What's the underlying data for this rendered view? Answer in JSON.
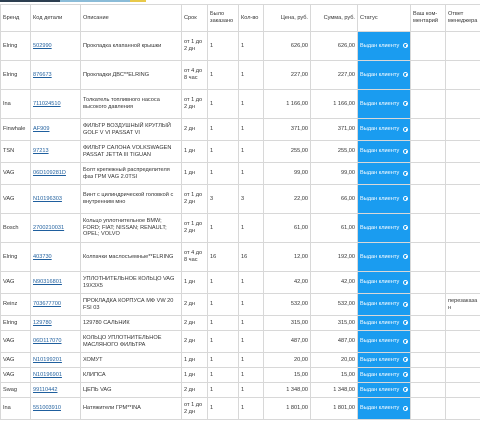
{
  "colors": {
    "status_bg": "#1a9cf0",
    "delete_icon": "#d9534f",
    "link": "#1f5f9e",
    "top_bar": [
      "#2c3e50",
      "#8bbcd8",
      "#e8c94a"
    ]
  },
  "columns": {
    "brand": "Бренд",
    "code": "Код детали",
    "description": "Описание",
    "term": "Срок",
    "ordered": "Было заказано",
    "qty": "Кол-во",
    "price": "Цена, руб.",
    "sum": "Сумма, руб.",
    "status": "Статус",
    "comment": "Ваш ком-ментарий",
    "manager": "Ответ менеджера"
  },
  "icons": {
    "status": "clock-icon",
    "delete": "delete-icon"
  },
  "rows": [
    {
      "brand": "Elring",
      "code": "502990",
      "description": "Прокладка клапанной крышки",
      "term": "от 1 до 2 дн",
      "ordered": "1",
      "qty": "1",
      "price": "626,00",
      "sum": "626,00",
      "status": "Выдан клиенту",
      "comment": "",
      "manager": ""
    },
    {
      "brand": "Elring",
      "code": "876673",
      "description": "Прокладки ДВС**ELRING",
      "term": "от 4 до 8 час",
      "ordered": "1",
      "qty": "1",
      "price": "227,00",
      "sum": "227,00",
      "status": "Выдан клиенту",
      "comment": "",
      "manager": ""
    },
    {
      "brand": "Ina",
      "code": "711024510",
      "description": "Толкатель топливного насоса высокого давления",
      "term": "от 1 до 2 дн",
      "ordered": "1",
      "qty": "1",
      "price": "1 166,00",
      "sum": "1 166,00",
      "status": "Выдан клиенту",
      "comment": "",
      "manager": ""
    },
    {
      "brand": "Finwhale",
      "code": "AF909",
      "description": "ФИЛЬТР ВОЗДУШНЫЙ КРУГЛЫЙ GOLF V VI PASSAT VI",
      "term": "2 дн",
      "ordered": "1",
      "qty": "1",
      "price": "371,00",
      "sum": "371,00",
      "status": "Выдан клиенту",
      "comment": "",
      "manager": ""
    },
    {
      "brand": "TSN",
      "code": "97213",
      "description": "ФИЛЬТР САЛОНА VOLKSWAGEN PASSAT JETTA III TIGUAN",
      "term": "1 дн",
      "ordered": "1",
      "qty": "1",
      "price": "255,00",
      "sum": "255,00",
      "status": "Выдан клиенту",
      "comment": "",
      "manager": ""
    },
    {
      "brand": "VAG",
      "code": "06D109281D",
      "description": "Болт крепежный распределителя фаз ГРМ VAG 2.0TSI",
      "term": "1 дн",
      "ordered": "1",
      "qty": "1",
      "price": "99,00",
      "sum": "99,00",
      "status": "Выдан клиенту",
      "comment": "",
      "manager": ""
    },
    {
      "brand": "VAG",
      "code": "N10196303",
      "description": "Винт с цилиндрической головкой с внутренним мно",
      "term": "от 1 до 2 дн",
      "ordered": "3",
      "qty": "3",
      "price": "22,00",
      "sum": "66,00",
      "status": "Выдан клиенту",
      "comment": "",
      "manager": ""
    },
    {
      "brand": "Bosch",
      "code": "2700210031",
      "description": "Кольцо уплотнительное BMW; FORD; FIAT; NISSAN; RENAULT; OPEL; VOLVO",
      "term": "от 1 до 2 дн",
      "ordered": "1",
      "qty": "1",
      "price": "61,00",
      "sum": "61,00",
      "status": "Выдан клиенту",
      "comment": "",
      "manager": ""
    },
    {
      "brand": "Elring",
      "code": "403730",
      "description": "Колпачки маслосъемные**ELRING",
      "term": "от 4 до 8 час",
      "ordered": "16",
      "qty": "16",
      "price": "12,00",
      "sum": "192,00",
      "status": "Выдан клиенту",
      "comment": "",
      "manager": ""
    },
    {
      "brand": "VAG",
      "code": "N90316801",
      "description": "УПЛОТНИТЕЛЬНОЕ КОЛЬЦО VAG 19X3X5",
      "term": "1 дн",
      "ordered": "1",
      "qty": "1",
      "price": "42,00",
      "sum": "42,00",
      "status": "Выдан клиенту",
      "comment": "",
      "manager": ""
    },
    {
      "brand": "Reinz",
      "code": "703677700",
      "description": "ПРОКЛАДКА КОРПУСА МФ VW 20 FSI 03",
      "term": "2 дн",
      "ordered": "1",
      "qty": "1",
      "price": "532,00",
      "sum": "532,00",
      "status": "Выдан клиенту",
      "comment": "",
      "manager": "перезаказан"
    },
    {
      "brand": "Elring",
      "code": "129780",
      "description": "129780 САЛЬНИК",
      "term": "2 дн",
      "ordered": "1",
      "qty": "1",
      "price": "315,00",
      "sum": "315,00",
      "status": "Выдан клиенту",
      "comment": "",
      "manager": ""
    },
    {
      "brand": "VAG",
      "code": "06D117070",
      "description": "КОЛЬЦО УПЛОТНИТЕЛЬНОЕ МАСЛЯНОГО ФИЛЬТРА",
      "term": "2 дн",
      "ordered": "1",
      "qty": "1",
      "price": "487,00",
      "sum": "487,00",
      "status": "Выдан клиенту",
      "comment": "",
      "manager": ""
    },
    {
      "brand": "VAG",
      "code": "N10199201",
      "description": "ХОМУТ",
      "term": "1 дн",
      "ordered": "1",
      "qty": "1",
      "price": "20,00",
      "sum": "20,00",
      "status": "Выдан клиенту",
      "comment": "",
      "manager": ""
    },
    {
      "brand": "VAG",
      "code": "N10196901",
      "description": "КЛИПСА",
      "term": "1 дн",
      "ordered": "1",
      "qty": "1",
      "price": "15,00",
      "sum": "15,00",
      "status": "Выдан клиенту",
      "comment": "",
      "manager": ""
    },
    {
      "brand": "Swag",
      "code": "99110442",
      "description": "ЦЕПЬ VAG",
      "term": "2 дн",
      "ordered": "1",
      "qty": "1",
      "price": "1 348,00",
      "sum": "1 348,00",
      "status": "Выдан клиенту",
      "comment": "",
      "manager": ""
    },
    {
      "brand": "Ina",
      "code": "551003910",
      "description": "Натяжители ГРМ**INA",
      "term": "от 1 до 2 дн",
      "ordered": "1",
      "qty": "1",
      "price": "1 801,00",
      "sum": "1 801,00",
      "status": "Выдан клиенту",
      "comment": "",
      "manager": ""
    }
  ]
}
